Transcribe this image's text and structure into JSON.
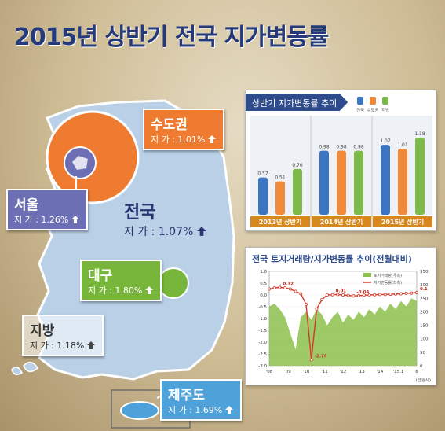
{
  "page": {
    "title": "2015년 상반기 전국 지가변동률"
  },
  "regions": {
    "capital": {
      "name": "수도권",
      "rate": "지 가 : 1.01%",
      "color": "#ee7b2f"
    },
    "seoul": {
      "name": "서울",
      "rate": "지 가 : 1.26%",
      "color": "#6d6fb4"
    },
    "national": {
      "name": "전국",
      "rate": "지 가 : 1.07%"
    },
    "daegu": {
      "name": "대구",
      "rate": "지 가 : 1.80%",
      "color": "#78b63b"
    },
    "provinces": {
      "name": "지방",
      "rate": "지 가 : 1.18%"
    },
    "jeju": {
      "name": "제주도",
      "rate": "지 가 : 1.69%",
      "color": "#4fa2d9"
    }
  },
  "chart_data": [
    {
      "type": "bar",
      "title": "상반기 지가변동률 추이",
      "categories": [
        "2013년 상반기",
        "2014년 상반기",
        "2015년 상반기"
      ],
      "legend": [
        "전국",
        "수도권",
        "지방"
      ],
      "colors": [
        "#3c74c4",
        "#ee8a3a",
        "#7dba4a"
      ],
      "series": [
        {
          "name": "전국",
          "values": [
            0.57,
            0.98,
            1.07
          ],
          "labels": [
            "0.57",
            "0.98",
            "1.07"
          ]
        },
        {
          "name": "수도권",
          "values": [
            0.51,
            0.98,
            1.01
          ],
          "labels": [
            "0.51",
            "0.98",
            "1.01"
          ]
        },
        {
          "name": "지방",
          "values": [
            0.7,
            0.98,
            1.18
          ],
          "labels": [
            "0.70",
            "0.98",
            "1.18"
          ]
        }
      ],
      "ylim": [
        0,
        1.3
      ]
    },
    {
      "type": "area",
      "title": "전국 토지거래량/지가변동률 추이(전월대비)",
      "legend": [
        "토지거래량(우측)",
        "지가변동률(좌측)"
      ],
      "left_ticks": [
        "1.0",
        "0.5",
        "0.0",
        "-0.5",
        "-1.0",
        "-1.5",
        "-2.0",
        "-2.5",
        "-3.0"
      ],
      "right_ticks": [
        "350",
        "300",
        "250",
        "200",
        "150",
        "100",
        "50",
        "0"
      ],
      "x_ticks": [
        "'08",
        "'09",
        "'10",
        "'11",
        "'12",
        "'13",
        "'14",
        "'15.1",
        "6"
      ],
      "ylim_left": [
        -3.0,
        1.0
      ],
      "ylim_right": [
        0,
        350
      ],
      "annotations": [
        "0.32",
        "0.01",
        "-2.75",
        "-0.04",
        "0.1"
      ],
      "land_price_change": [
        0.25,
        0.3,
        0.32,
        0.3,
        0.25,
        0.15,
        0.05,
        -0.4,
        -2.75,
        -0.6,
        -0.2,
        0.0,
        0.01,
        0.02,
        0.0,
        -0.02,
        -0.04,
        -0.03,
        -0.01,
        0.0,
        0.01,
        0.02,
        0.02,
        0.03,
        0.04,
        0.05,
        0.07,
        0.08,
        0.1
      ],
      "land_transaction_volume": [
        220,
        230,
        210,
        180,
        120,
        60,
        180,
        200,
        170,
        210,
        190,
        150,
        180,
        200,
        160,
        190,
        170,
        200,
        180,
        210,
        190,
        220,
        200,
        230,
        210,
        240,
        220,
        250,
        240
      ],
      "unit_note": "(천필지)"
    }
  ]
}
